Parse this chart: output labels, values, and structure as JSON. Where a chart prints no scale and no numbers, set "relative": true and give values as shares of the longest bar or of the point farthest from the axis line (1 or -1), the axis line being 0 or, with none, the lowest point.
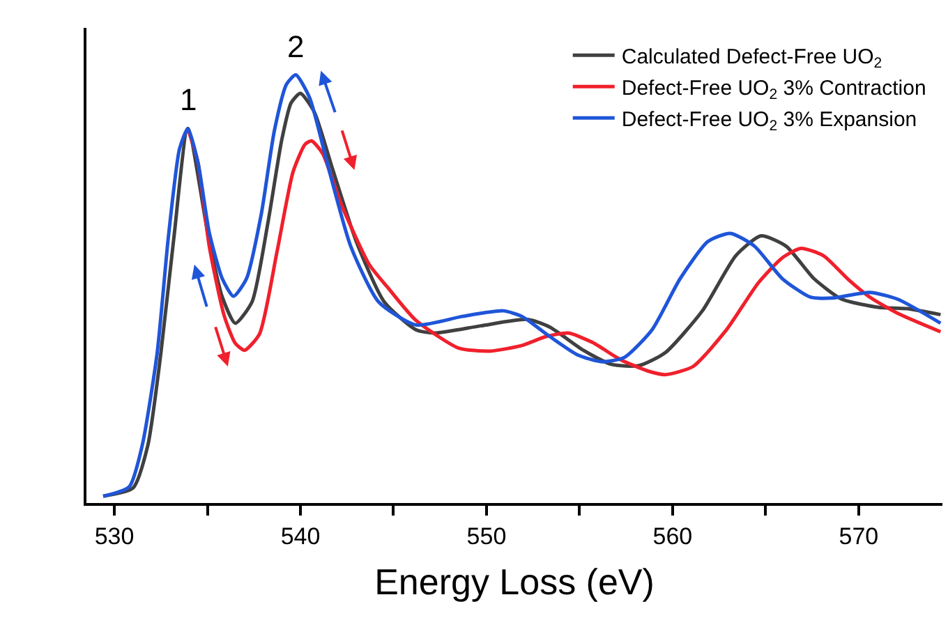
{
  "chart_data": {
    "type": "line",
    "xlabel": "Energy Loss (eV)",
    "relative": true,
    "xlim": [
      528.5,
      574.5
    ],
    "xticks": [
      530,
      {
        "value": 535,
        "label": null
      },
      540,
      {
        "value": 545,
        "label": null
      },
      550,
      {
        "value": 555,
        "label": null
      },
      560,
      {
        "value": 565,
        "label": null
      },
      570
    ],
    "legend": "top right",
    "line_style": "solid",
    "marker": "none",
    "annotations": [
      {
        "text": "1",
        "x": 533.95,
        "y": 0.875
      },
      {
        "text": "2",
        "x": 539.75,
        "y": 1.0
      }
    ],
    "series": [
      {
        "name": "Calculated Defect-Free UO$_{2}$",
        "color": "#404040",
        "x": [
          529.4,
          531.0,
          531.8,
          532.5,
          533.2,
          533.95,
          535.1,
          535.8,
          536.5,
          537.4,
          538.25,
          539.0,
          539.5,
          540.0,
          540.75,
          541.7,
          543.0,
          544.5,
          546.2,
          547.2,
          549.7,
          552.2,
          553.4,
          555.2,
          556.7,
          558.2,
          559.6,
          561.6,
          563.4,
          564.75,
          566.1,
          567.6,
          569.1,
          571.1,
          572.6,
          574.4
        ],
        "values": [
          0.016,
          0.035,
          0.135,
          0.35,
          0.62,
          0.875,
          0.61,
          0.481,
          0.42,
          0.47,
          0.654,
          0.849,
          0.935,
          0.957,
          0.913,
          0.784,
          0.611,
          0.47,
          0.405,
          0.397,
          0.414,
          0.429,
          0.411,
          0.357,
          0.324,
          0.321,
          0.351,
          0.449,
          0.578,
          0.624,
          0.6,
          0.524,
          0.476,
          0.457,
          0.454,
          0.44
        ]
      },
      {
        "name": "Defect-Free UO$_{2}$ 3% Contraction",
        "color": "#f0202c",
        "x": [
          533.95,
          534.5,
          535.1,
          535.9,
          536.5,
          537.0,
          537.8,
          538.75,
          539.6,
          540.25,
          540.6,
          541.2,
          542.2,
          543.7,
          544.7,
          546.2,
          548.5,
          550.2,
          551.9,
          553.2,
          554.4,
          555.7,
          557.2,
          558.7,
          559.6,
          561.1,
          562.9,
          564.6,
          565.9,
          566.9,
          568.1,
          569.4,
          570.6,
          572.1,
          574.4
        ],
        "values": [
          0.875,
          0.794,
          0.6,
          0.438,
          0.373,
          0.357,
          0.395,
          0.589,
          0.773,
          0.838,
          0.846,
          0.816,
          0.697,
          0.557,
          0.503,
          0.427,
          0.362,
          0.355,
          0.368,
          0.389,
          0.397,
          0.375,
          0.335,
          0.308,
          0.3,
          0.319,
          0.405,
          0.514,
          0.573,
          0.595,
          0.578,
          0.524,
          0.481,
          0.443,
          0.4
        ]
      },
      {
        "name": "Defect-Free UO$_{2}$ 3% Expansion",
        "color": "#1f55d8",
        "x": [
          529.4,
          530.8,
          531.5,
          532.3,
          532.9,
          533.5,
          533.95,
          534.5,
          535.1,
          535.8,
          536.4,
          537.1,
          537.9,
          538.6,
          539.25,
          539.75,
          540.5,
          541.5,
          542.7,
          544.2,
          546.2,
          548.7,
          550.9,
          551.9,
          553.4,
          554.9,
          556.2,
          557.4,
          558.9,
          560.4,
          561.9,
          563.1,
          564.4,
          565.9,
          567.4,
          568.6,
          570.6,
          572.1,
          574.4
        ],
        "values": [
          0.016,
          0.038,
          0.135,
          0.35,
          0.62,
          0.827,
          0.875,
          0.794,
          0.632,
          0.524,
          0.483,
          0.524,
          0.676,
          0.87,
          0.978,
          1.0,
          0.946,
          0.784,
          0.6,
          0.47,
          0.416,
          0.436,
          0.449,
          0.436,
          0.389,
          0.346,
          0.33,
          0.34,
          0.405,
          0.524,
          0.611,
          0.63,
          0.6,
          0.524,
          0.481,
          0.479,
          0.492,
          0.476,
          0.42
        ]
      }
    ]
  }
}
